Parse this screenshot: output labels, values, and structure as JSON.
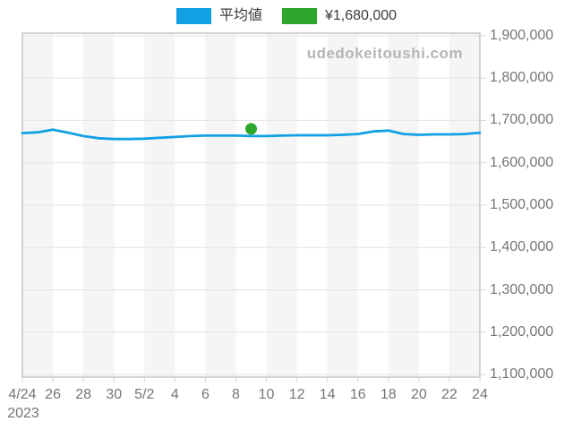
{
  "watermark": "udedokeitoushi.com",
  "legend": {
    "items": [
      {
        "label": "平均値",
        "color": "#12a0e4"
      },
      {
        "label": "¥1,680,000",
        "color": "#2ca62c"
      }
    ]
  },
  "chart_data": {
    "type": "line",
    "title": "",
    "xlabel": "",
    "ylabel": "",
    "year_label": "2023",
    "ylim": [
      1100000,
      1900000
    ],
    "x_range_days": [
      0,
      30
    ],
    "grid": "horizontal",
    "legend_position": "top-center",
    "stripe_color": "#f5f5f5",
    "grid_color": "#e3e3e3",
    "tick_color": "#d8d8d8",
    "border_color": "#c7c7c7",
    "y_ticks": [
      {
        "value": 1900000,
        "label": "1,900,000"
      },
      {
        "value": 1800000,
        "label": "1,800,000"
      },
      {
        "value": 1700000,
        "label": "1,700,000"
      },
      {
        "value": 1600000,
        "label": "1,600,000"
      },
      {
        "value": 1500000,
        "label": "1,500,000"
      },
      {
        "value": 1400000,
        "label": "1,400,000"
      },
      {
        "value": 1300000,
        "label": "1,300,000"
      },
      {
        "value": 1200000,
        "label": "1,200,000"
      },
      {
        "value": 1100000,
        "label": "1,100,000"
      }
    ],
    "x_ticks": [
      {
        "day": 0,
        "label": "4/24"
      },
      {
        "day": 2,
        "label": "26"
      },
      {
        "day": 4,
        "label": "28"
      },
      {
        "day": 6,
        "label": "30"
      },
      {
        "day": 8,
        "label": "5/2"
      },
      {
        "day": 10,
        "label": "4"
      },
      {
        "day": 12,
        "label": "6"
      },
      {
        "day": 14,
        "label": "8"
      },
      {
        "day": 16,
        "label": "10"
      },
      {
        "day": 18,
        "label": "12"
      },
      {
        "day": 20,
        "label": "14"
      },
      {
        "day": 22,
        "label": "16"
      },
      {
        "day": 24,
        "label": "18"
      },
      {
        "day": 26,
        "label": "20"
      },
      {
        "day": 28,
        "label": "22"
      },
      {
        "day": 30,
        "label": "24"
      }
    ],
    "series": [
      {
        "name": "平均値",
        "color": "#12a0e4",
        "points": [
          [
            0,
            1670000
          ],
          [
            1,
            1672000
          ],
          [
            2,
            1678000
          ],
          [
            3,
            1671000
          ],
          [
            4,
            1663000
          ],
          [
            5,
            1658000
          ],
          [
            6,
            1656000
          ],
          [
            7,
            1656000
          ],
          [
            8,
            1657000
          ],
          [
            9,
            1659000
          ],
          [
            10,
            1661000
          ],
          [
            11,
            1663000
          ],
          [
            12,
            1664000
          ],
          [
            13,
            1664000
          ],
          [
            14,
            1664000
          ],
          [
            15,
            1663000
          ],
          [
            16,
            1663000
          ],
          [
            17,
            1664000
          ],
          [
            18,
            1665000
          ],
          [
            19,
            1665000
          ],
          [
            20,
            1665000
          ],
          [
            21,
            1666000
          ],
          [
            22,
            1668000
          ],
          [
            23,
            1674000
          ],
          [
            24,
            1676000
          ],
          [
            25,
            1668000
          ],
          [
            26,
            1666000
          ],
          [
            27,
            1667000
          ],
          [
            28,
            1667000
          ],
          [
            29,
            1668000
          ],
          [
            30,
            1671000
          ]
        ]
      }
    ],
    "marker": {
      "name": "¥1,680,000",
      "color": "#2ca62c",
      "day": 15,
      "date": "5/9",
      "value": 1680000
    }
  }
}
